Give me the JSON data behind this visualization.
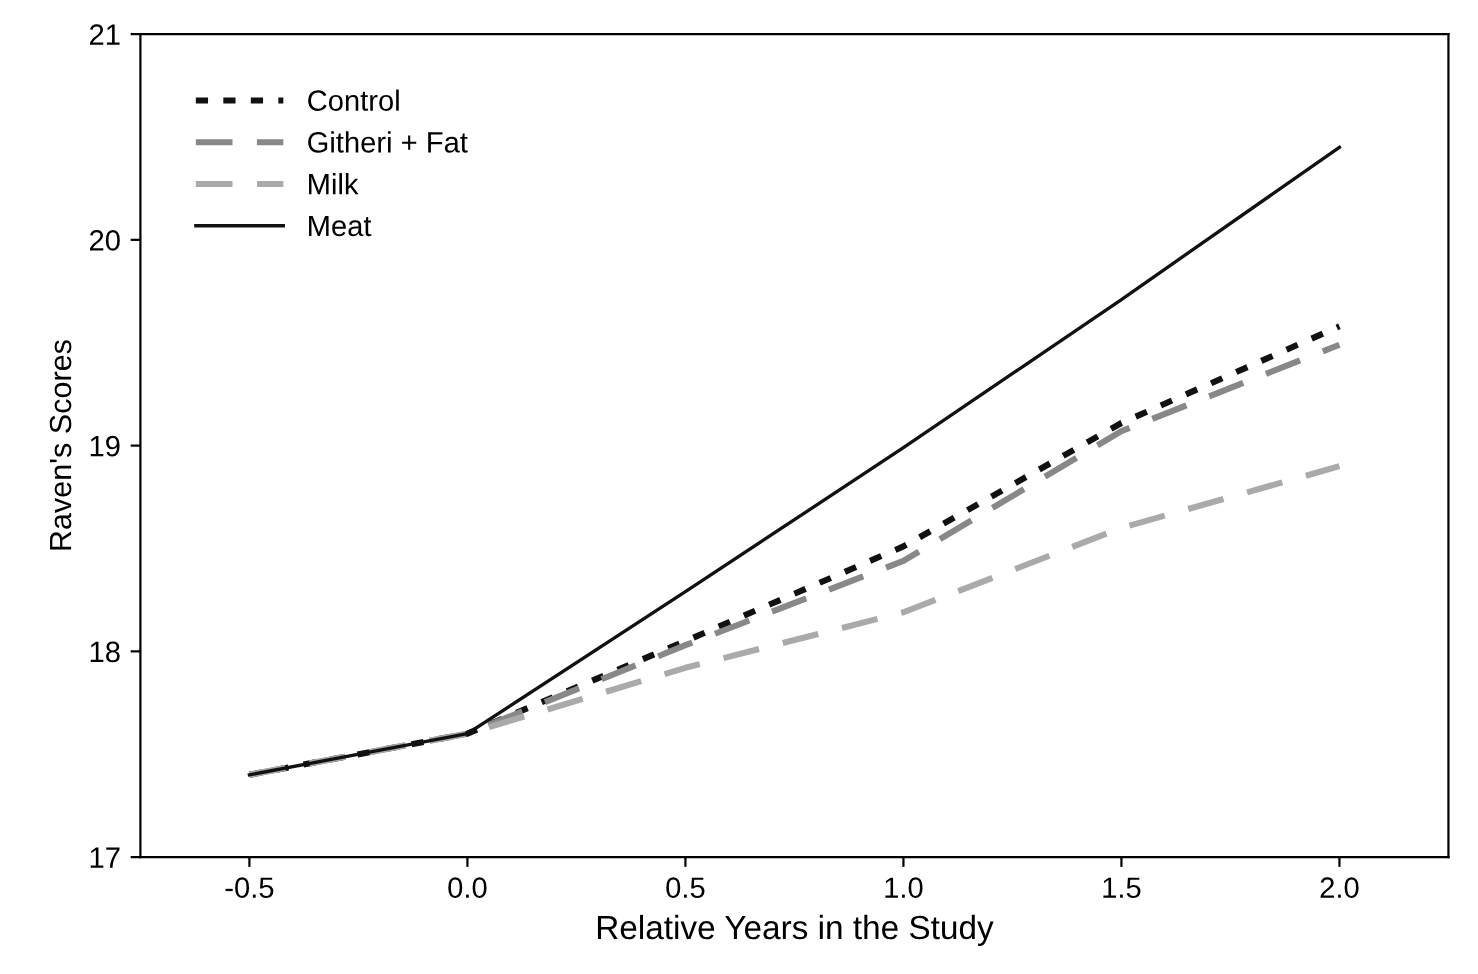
{
  "chart_data": {
    "type": "line",
    "xlabel": "Relative Years in the Study",
    "ylabel": "Raven's Scores",
    "x": [
      -0.5,
      0.0,
      0.5,
      1.0,
      1.5,
      2.0
    ],
    "xlim": [
      -0.75,
      2.25
    ],
    "xticks": [
      {
        "value": -0.5,
        "label": "-0.5"
      },
      {
        "value": 0.0,
        "label": "0.0"
      },
      {
        "value": 0.5,
        "label": "0.5"
      },
      {
        "value": 1.0,
        "label": "1.0"
      },
      {
        "value": 1.5,
        "label": "1.5"
      },
      {
        "value": 2.0,
        "label": "2.0"
      }
    ],
    "ylim": [
      17,
      21
    ],
    "yticks": [
      17,
      18,
      19,
      20,
      21
    ],
    "grid": false,
    "legend": "top left",
    "marker": "none",
    "series": [
      {
        "name": "Control",
        "color": "#111111",
        "line_style": "dotted",
        "values": [
          17.4,
          17.6,
          18.05,
          18.51,
          19.11,
          19.58
        ]
      },
      {
        "name": "Githeri + Fat",
        "color": "#888888",
        "line_style": "dashed",
        "values": [
          17.4,
          17.6,
          18.03,
          18.44,
          19.07,
          19.49
        ]
      },
      {
        "name": "Milk",
        "color": "#aaaaaa",
        "line_style": "dashed",
        "values": [
          17.4,
          17.6,
          17.92,
          18.19,
          18.6,
          18.9
        ]
      },
      {
        "name": "Meat",
        "color": "#111111",
        "line_style": "solid",
        "values": [
          17.4,
          17.6,
          18.29,
          18.99,
          19.71,
          20.45
        ]
      }
    ]
  }
}
